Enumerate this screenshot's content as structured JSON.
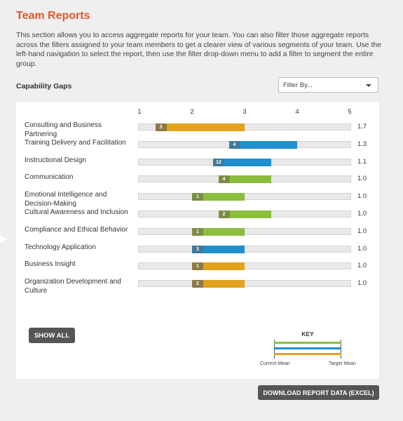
{
  "header": {
    "title": "Team Reports",
    "intro": "This section allows you to access aggregate reports for your team. You can also filter those aggregate reports across the filters assigned to your team members to get a clearer view of various segments of your team. Use the left-hand navigation to select the report, then use the filter drop-down menu to add a filter to segment the entire group."
  },
  "section": {
    "heading": "Capability Gaps"
  },
  "filter": {
    "selected": "Filter By..."
  },
  "colors": {
    "orange": "#e2a21c",
    "blue": "#1e8fcf",
    "green": "#8bbd3f",
    "brand": "#e0582a"
  },
  "chart_data": {
    "type": "bar",
    "x_ticks": [
      "1",
      "2",
      "3",
      "4",
      "5"
    ],
    "xlim": [
      1,
      5
    ],
    "rows": [
      {
        "label": "Consulting and Business Partnering",
        "current_mean": 1.3,
        "target_mean": 3.0,
        "count": "3",
        "gap": "1.7",
        "color": "orange"
      },
      {
        "label": "Training Delivery and Facilitation",
        "current_mean": 2.7,
        "target_mean": 4.0,
        "count": "4",
        "gap": "1.3",
        "color": "blue"
      },
      {
        "label": "Instructional Design",
        "current_mean": 2.4,
        "target_mean": 3.5,
        "count": "12",
        "gap": "1.1",
        "color": "blue"
      },
      {
        "label": "Communication",
        "current_mean": 2.5,
        "target_mean": 3.5,
        "count": "4",
        "gap": "1.0",
        "color": "green"
      },
      {
        "label": "Emotional Intelligence and Decision-Making",
        "current_mean": 2.0,
        "target_mean": 3.0,
        "count": "1",
        "gap": "1.0",
        "color": "green"
      },
      {
        "label": "Cultural Awareness and Inclusion",
        "current_mean": 2.5,
        "target_mean": 3.5,
        "count": "2",
        "gap": "1.0",
        "color": "green"
      },
      {
        "label": "Compliance and Ethical Behavior",
        "current_mean": 2.0,
        "target_mean": 3.0,
        "count": "1",
        "gap": "1.0",
        "color": "green"
      },
      {
        "label": "Technology Application",
        "current_mean": 2.0,
        "target_mean": 3.0,
        "count": "3",
        "gap": "1.0",
        "color": "blue"
      },
      {
        "label": "Business Insight",
        "current_mean": 2.0,
        "target_mean": 3.0,
        "count": "1",
        "gap": "1.0",
        "color": "orange"
      },
      {
        "label": "Organization Development and Culture",
        "current_mean": 2.0,
        "target_mean": 3.0,
        "count": "2",
        "gap": "1.0",
        "color": "orange"
      }
    ]
  },
  "show_all_label": "SHOW ALL",
  "key": {
    "title": "KEY",
    "current_label": "Current Mean",
    "target_label": "Target Mean"
  },
  "download_label": "DOWNLOAD REPORT DATA (EXCEL)"
}
